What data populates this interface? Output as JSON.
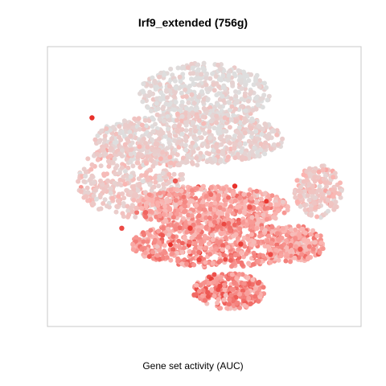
{
  "chart_data": {
    "type": "scatter",
    "title": "Irf9_extended (756g)",
    "caption": "Gene set activity (AUC)",
    "xlabel": "",
    "ylabel": "",
    "xlim": [
      0,
      100
    ],
    "ylim": [
      0,
      100
    ],
    "grid": false,
    "legend": "none",
    "colors": {
      "low": "#dedede",
      "mid": "#fbb4b0",
      "high": "#e8302a"
    },
    "point_size_note": "dense overlapping points; t-SNE embedding colored by AUC",
    "regions": [
      {
        "name": "top lobe",
        "cx": 50,
        "cy": 85,
        "rx": 22,
        "ry": 12,
        "auc": 0.05,
        "n": 520
      },
      {
        "name": "upper-middle body",
        "cx": 45,
        "cy": 68,
        "rx": 32,
        "ry": 10,
        "auc": 0.15,
        "n": 700
      },
      {
        "name": "left-middle body",
        "cx": 25,
        "cy": 52,
        "rx": 18,
        "ry": 14,
        "auc": 0.25,
        "n": 420
      },
      {
        "name": "central band",
        "cx": 52,
        "cy": 42,
        "rx": 26,
        "ry": 8,
        "auc": 0.55,
        "n": 600
      },
      {
        "name": "lower body",
        "cx": 55,
        "cy": 28,
        "rx": 30,
        "ry": 9,
        "auc": 0.6,
        "n": 700
      },
      {
        "name": "right arm",
        "cx": 88,
        "cy": 48,
        "rx": 8,
        "ry": 10,
        "auc": 0.3,
        "n": 200
      },
      {
        "name": "right lower lobe",
        "cx": 80,
        "cy": 28,
        "rx": 10,
        "ry": 7,
        "auc": 0.55,
        "n": 220
      },
      {
        "name": "bottom lobe",
        "cx": 58,
        "cy": 10,
        "rx": 12,
        "ry": 7,
        "auc": 0.65,
        "n": 300
      }
    ],
    "highlights": [
      {
        "x": 12,
        "y": 76,
        "auc": 1.0
      },
      {
        "x": 60,
        "y": 50,
        "auc": 1.0
      },
      {
        "x": 45,
        "y": 34,
        "auc": 0.95
      },
      {
        "x": 62,
        "y": 28,
        "auc": 0.95
      },
      {
        "x": 22,
        "y": 34,
        "auc": 0.9
      },
      {
        "x": 48,
        "y": 22,
        "auc": 0.9
      },
      {
        "x": 72,
        "y": 24,
        "auc": 0.9
      },
      {
        "x": 82,
        "y": 26,
        "auc": 0.85
      },
      {
        "x": 55,
        "y": 12,
        "auc": 0.9
      },
      {
        "x": 40,
        "y": 52,
        "auc": 0.85
      },
      {
        "x": 30,
        "y": 40,
        "auc": 0.8
      },
      {
        "x": 65,
        "y": 42,
        "auc": 0.85
      }
    ]
  }
}
